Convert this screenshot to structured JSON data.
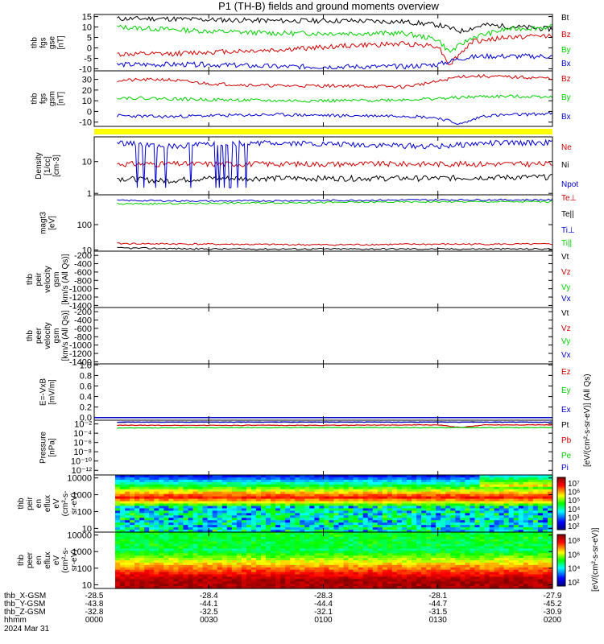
{
  "chart_data": [
    {
      "type": "line",
      "title": "P1 (TH-B) fields and ground moments overview",
      "ylabel_lines": [
        "thb",
        "fgs",
        "gse",
        "[nT]"
      ],
      "yticks": [
        15,
        10,
        5,
        0,
        -5,
        -10
      ],
      "ylim": [
        -11,
        16
      ],
      "series": [
        {
          "name": "Bt",
          "color": "#000000",
          "x_hours": [
            0.1,
            0.3,
            0.5,
            0.8,
            1.1,
            1.35,
            1.5,
            1.6,
            1.7,
            1.85,
            2.0
          ],
          "values": [
            14,
            14,
            13.5,
            13,
            13,
            12.5,
            11,
            8,
            11,
            10,
            9
          ]
        },
        {
          "name": "Bz",
          "color": "#d00000",
          "x_hours": [
            0.1,
            0.3,
            0.5,
            0.8,
            1.1,
            1.35,
            1.5,
            1.55,
            1.65,
            1.8,
            2.0
          ],
          "values": [
            -3,
            -3,
            -2,
            -1,
            1,
            2,
            1,
            -8,
            3,
            5,
            6
          ]
        },
        {
          "name": "By",
          "color": "#00d000",
          "x_hours": [
            0.1,
            0.3,
            0.5,
            0.8,
            1.1,
            1.35,
            1.5,
            1.55,
            1.65,
            1.8,
            2.0
          ],
          "values": [
            10,
            9,
            8,
            7,
            7,
            7,
            4,
            -2,
            5,
            9,
            10
          ]
        },
        {
          "name": "Bx",
          "color": "#0000d0",
          "x_hours": [
            0.1,
            0.3,
            0.5,
            0.8,
            1.1,
            1.35,
            1.5,
            1.6,
            1.7,
            1.85,
            2.0
          ],
          "values": [
            -8,
            -8,
            -8,
            -9,
            -9,
            -9,
            -8,
            -5,
            -4,
            -4,
            -4
          ]
        }
      ]
    },
    {
      "type": "line",
      "ylabel_lines": [
        "thb",
        "fgs",
        "gsm",
        "[nT]"
      ],
      "yticks": [
        30,
        20,
        10,
        0,
        -10
      ],
      "ylim": [
        -14,
        38
      ],
      "series": [
        {
          "name": "Bz",
          "color": "#d00000",
          "x_hours": [
            0.1,
            0.3,
            0.5,
            0.8,
            1.1,
            1.35,
            1.5,
            1.6,
            1.7,
            1.85,
            2.0
          ],
          "values": [
            29,
            30,
            26,
            24,
            24,
            23,
            28,
            33,
            33,
            32,
            31
          ]
        },
        {
          "name": "By",
          "color": "#00d000",
          "x_hours": [
            0.1,
            0.3,
            0.5,
            0.8,
            1.1,
            1.35,
            1.5,
            1.6,
            1.7,
            1.85,
            2.0
          ],
          "values": [
            13,
            12,
            11,
            10,
            10,
            11,
            12,
            13,
            14,
            14,
            14
          ]
        },
        {
          "name": "Bx",
          "color": "#0000d0",
          "x_hours": [
            0.1,
            0.3,
            0.5,
            0.8,
            1.1,
            1.35,
            1.5,
            1.6,
            1.7,
            1.85,
            2.0
          ],
          "values": [
            -4,
            -5,
            -4,
            -3,
            -4,
            -4,
            -6,
            -12,
            -4,
            -3,
            -2
          ]
        }
      ]
    },
    {
      "type": "line",
      "scale": "log",
      "ylabel_lines": [
        "Density",
        "[1/cc]",
        "[cm-3]"
      ],
      "yticks": [
        10,
        1
      ],
      "ylim": [
        0.9,
        60
      ],
      "series": [
        {
          "name": "Ne",
          "color": "#d00000",
          "x_hours": [
            0.1,
            0.3,
            0.5,
            0.8,
            1.1,
            1.35,
            1.5,
            1.7,
            2.0
          ],
          "values": [
            8.5,
            8.5,
            8.5,
            8.5,
            8.5,
            8.5,
            8.5,
            8.5,
            8.5
          ]
        },
        {
          "name": "Ni",
          "color": "#000000",
          "x_hours": [
            0.1,
            0.3,
            0.5,
            0.8,
            1.1,
            1.35,
            1.5,
            1.7,
            2.0
          ],
          "values": [
            3,
            2.5,
            3,
            3,
            3,
            3,
            3,
            3.2,
            3.3
          ]
        },
        {
          "name": "Npot",
          "color": "#0000d0",
          "x_hours": [
            0.1,
            0.3,
            0.5,
            0.8,
            1.1,
            1.35,
            1.5,
            1.7,
            2.0
          ],
          "values": [
            40,
            30,
            35,
            40,
            35,
            32,
            30,
            38,
            40
          ]
        }
      ]
    },
    {
      "type": "line",
      "scale": "log",
      "ylabel_lines": [
        "magt3",
        "[eV]"
      ],
      "yticks": [
        100,
        10
      ],
      "ylim": [
        9,
        1500
      ],
      "series": [
        {
          "name": "Te⊥",
          "color": "#d00000",
          "x_hours": [
            0.1,
            0.5,
            1.0,
            1.5,
            2.0
          ],
          "values": [
            18,
            17,
            16,
            17,
            17
          ]
        },
        {
          "name": "Te||",
          "color": "#000000",
          "x_hours": [
            0.1,
            0.5,
            1.0,
            1.5,
            2.0
          ],
          "values": [
            12,
            11,
            11,
            11,
            11
          ]
        },
        {
          "name": "Ti⊥",
          "color": "#0000d0",
          "x_hours": [
            0.1,
            0.5,
            1.0,
            1.5,
            2.0
          ],
          "values": [
            900,
            850,
            900,
            950,
            950
          ]
        },
        {
          "name": "Ti||",
          "color": "#00d000",
          "x_hours": [
            0.1,
            0.5,
            1.0,
            1.5,
            2.0
          ],
          "values": [
            650,
            700,
            750,
            800,
            800
          ]
        }
      ]
    },
    {
      "type": "line",
      "ylabel_lines": [
        "thb",
        "peir",
        "velocity",
        "gsm",
        "[km/s (All Qs)]"
      ],
      "yticks": [
        -200,
        -400,
        -600,
        -800,
        -1000,
        -1200,
        -1400
      ],
      "ylim": [
        -1450,
        -100
      ],
      "series": [
        {
          "name": "Vt",
          "color": "#000000",
          "values": []
        },
        {
          "name": "Vz",
          "color": "#d00000",
          "values": []
        },
        {
          "name": "Vy",
          "color": "#00d000",
          "values": []
        },
        {
          "name": "Vx",
          "color": "#0000d0",
          "values": []
        }
      ]
    },
    {
      "type": "line",
      "ylabel_lines": [
        "thb",
        "peer",
        "velocity",
        "gsm",
        "[km/s (All Qs)]"
      ],
      "yticks": [
        -200,
        -400,
        -600,
        -800,
        -1000,
        -1200,
        -1400
      ],
      "ylim": [
        -1450,
        -100
      ],
      "series": [
        {
          "name": "Vt",
          "color": "#000000",
          "values": []
        },
        {
          "name": "Vz",
          "color": "#d00000",
          "values": []
        },
        {
          "name": "Vy",
          "color": "#00d000",
          "values": []
        },
        {
          "name": "Vx",
          "color": "#0000d0",
          "values": []
        }
      ]
    },
    {
      "type": "line",
      "ylabel_lines": [
        "E=-VxB",
        "[mV/m]"
      ],
      "yticks": [
        1.0,
        0.8,
        0.6,
        0.4,
        0.2,
        0.0
      ],
      "ylim": [
        -0.05,
        1.02
      ],
      "series": [
        {
          "name": "Ez",
          "color": "#d00000",
          "values": []
        },
        {
          "name": "Ey",
          "color": "#00d000",
          "values": []
        },
        {
          "name": "Ex",
          "color": "#0000d0",
          "values": [
            0.0,
            0.0
          ]
        }
      ]
    },
    {
      "type": "line",
      "scale": "log",
      "ylabel_lines": [
        "Pressure",
        "[nPa]"
      ],
      "yticks": [
        "10⁻²",
        "10⁻⁴",
        "10⁻⁶",
        "10⁻⁸",
        "10⁻¹⁰",
        "10⁻¹²"
      ],
      "ylim_exp": [
        -13,
        -1.2
      ],
      "series": [
        {
          "name": "Pt",
          "color": "#000000",
          "x_hours": [
            0.1,
            1.0,
            2.0
          ],
          "log10_values": [
            -1.6,
            -1.6,
            -1.6
          ]
        },
        {
          "name": "Pb",
          "color": "#d00000",
          "x_hours": [
            0.1,
            0.5,
            1.0,
            1.5,
            1.6,
            1.7,
            2.0
          ],
          "log10_values": [
            -2.3,
            -2.3,
            -2.3,
            -2.2,
            -2.8,
            -2.2,
            -2.2
          ]
        },
        {
          "name": "Pe",
          "color": "#00d000",
          "x_hours": [
            0.1,
            0.5,
            1.0,
            1.5,
            2.0
          ],
          "log10_values": [
            -2.9,
            -2.8,
            -2.8,
            -2.8,
            -2.8
          ]
        },
        {
          "name": "Pi",
          "color": "#0000d0",
          "x_hours": [
            0.1,
            1.0,
            2.0
          ],
          "log10_values": [
            -1.6,
            -1.6,
            -1.6
          ]
        }
      ]
    },
    {
      "type": "heatmap",
      "ylabel_lines": [
        "thb",
        "peir",
        "en",
        "eflux",
        "eV",
        "(cm²-s-",
        "sr-eV)"
      ],
      "yticks": [
        10000,
        1000,
        100,
        10
      ],
      "colorbar_ticks": [
        "10⁷",
        "10⁶",
        "10⁵",
        "10⁴",
        "10³",
        "10²"
      ],
      "colorbar_label": "[eV/(cm²-s-sr-eV)] (All Qs)",
      "peak_energy_eV": 700
    },
    {
      "type": "heatmap",
      "ylabel_lines": [
        "thb",
        "peer",
        "en",
        "eflux",
        "eV",
        "(cm²-s-",
        "sr-eV)"
      ],
      "yticks": [
        10000,
        1000,
        100,
        10
      ],
      "colorbar_ticks": [
        "10⁸",
        "10⁶",
        "10⁴",
        "10²"
      ],
      "colorbar_label": "[eV/(cm²-s-sr-eV)]",
      "peak_energy_eV": 20
    }
  ],
  "xaxis": {
    "rows": [
      {
        "label": "thb_X-GSM",
        "values": [
          "-28.5",
          "-28.4",
          "-28.3",
          "-28.1",
          "-27.9"
        ]
      },
      {
        "label": "thb_Y-GSM",
        "values": [
          "-43.8",
          "-44.1",
          "-44.4",
          "-44.7",
          "-45.2"
        ]
      },
      {
        "label": "thb_Z-GSM",
        "values": [
          "-32.8",
          "-32.5",
          "-32.1",
          "-31.5",
          "-30.9"
        ]
      },
      {
        "label": "hhmm",
        "values": [
          "0000",
          "0030",
          "0100",
          "0130",
          "0200"
        ]
      }
    ],
    "date": "2024 Mar 31",
    "hour_ticks": [
      0,
      0.5,
      1.0,
      1.5,
      2.0
    ]
  },
  "colors": {
    "red": "#d00000",
    "green": "#00d000",
    "blue": "#0000d0",
    "black": "#000000",
    "flag": "#ffff00"
  }
}
